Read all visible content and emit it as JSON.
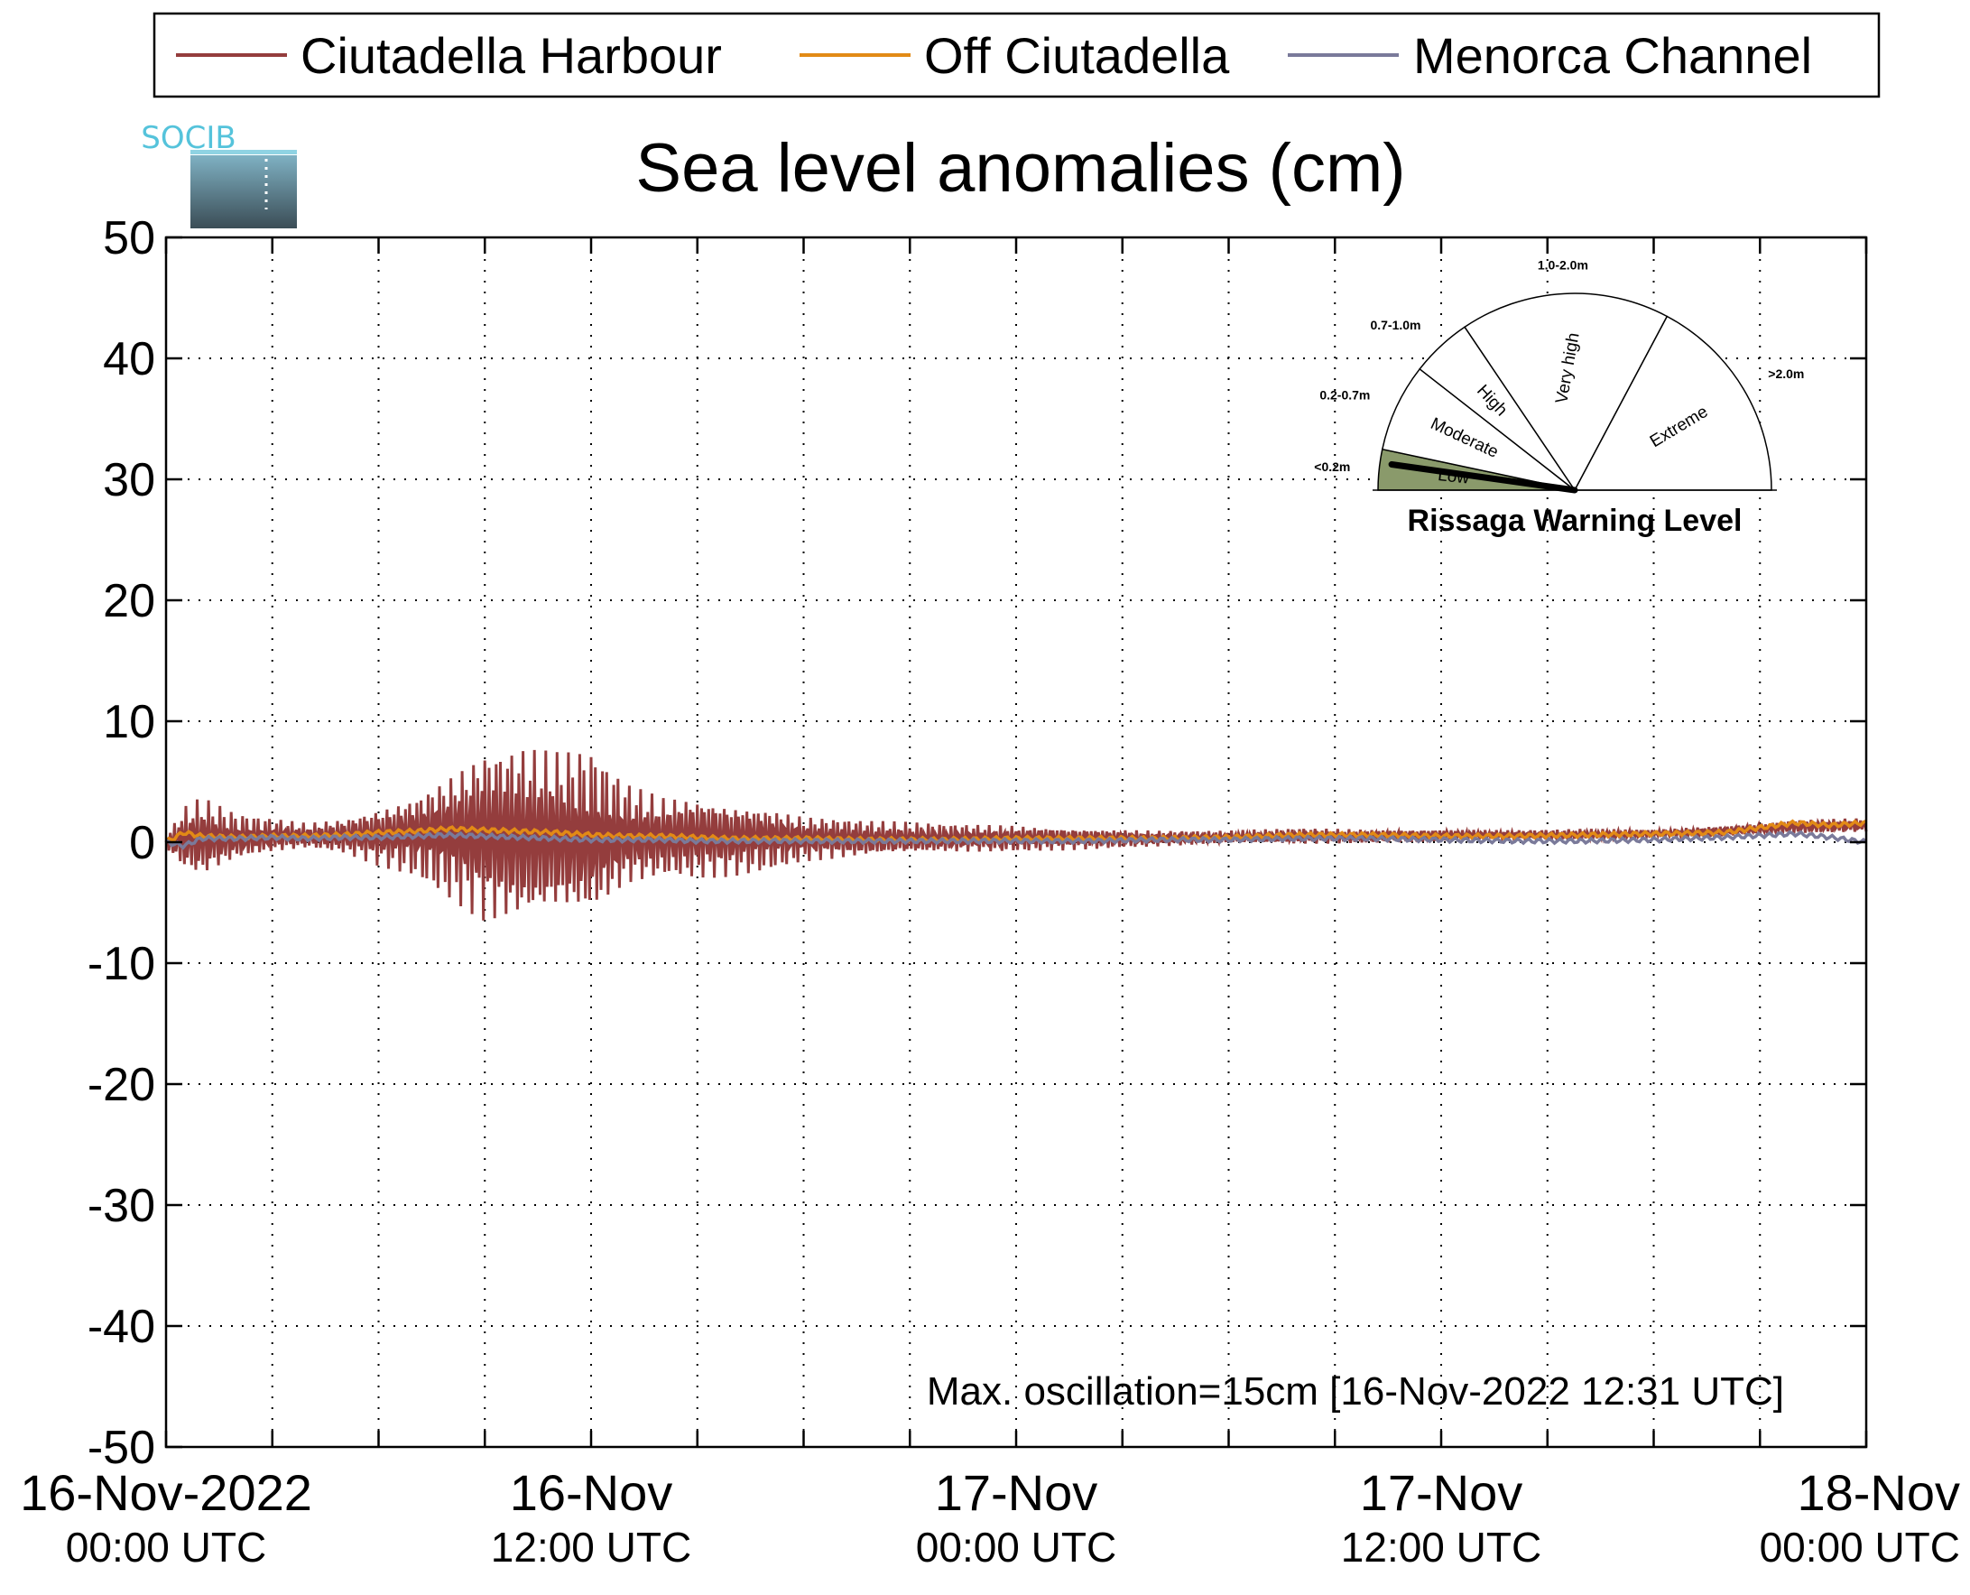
{
  "logo": {
    "text": "SOCIB",
    "color": "#55c3db"
  },
  "chart_data": {
    "type": "line",
    "title": "Sea level anomalies (cm)",
    "xlabel": "",
    "ylabel": "",
    "ylim": [
      -50,
      50
    ],
    "yticks": [
      50,
      40,
      30,
      20,
      10,
      0,
      -10,
      -20,
      -30,
      -40,
      -50
    ],
    "xlim_hours": [
      0,
      48
    ],
    "x_tick_labels": [
      {
        "hour": 0,
        "line1": "16-Nov-2022",
        "line2": "00:00 UTC"
      },
      {
        "hour": 12,
        "line1": "16-Nov",
        "line2": "12:00 UTC"
      },
      {
        "hour": 24,
        "line1": "17-Nov",
        "line2": "00:00 UTC"
      },
      {
        "hour": 36,
        "line1": "17-Nov",
        "line2": "12:00 UTC"
      },
      {
        "hour": 48,
        "line1": "18-Nov",
        "line2": "00:00 UTC"
      }
    ],
    "grid": true,
    "legend_position": "top",
    "series": [
      {
        "name": "Ciutadella Harbour",
        "color": "#943d3d",
        "envelope_time_hours": [
          0,
          0.5,
          1,
          2,
          3,
          4,
          5,
          6,
          7,
          8,
          8.5,
          9,
          9.5,
          10,
          11,
          12,
          13,
          14,
          15,
          16,
          17,
          18,
          20,
          22,
          24,
          26,
          28,
          30,
          32,
          34,
          36,
          38,
          40,
          42,
          44,
          46,
          48
        ],
        "envelope_max": [
          0.5,
          3,
          3.5,
          2,
          1.5,
          1.2,
          1.5,
          2.5,
          3.5,
          5.5,
          6.5,
          8,
          8,
          8,
          7.5,
          7,
          5,
          4,
          4,
          3.5,
          3,
          2,
          1.8,
          1.5,
          1.5,
          1.2,
          1,
          0.8,
          1.2,
          1.2,
          1.2,
          1,
          1.2,
          1,
          1.5,
          2,
          2
        ],
        "envelope_min": [
          -0.5,
          -2.5,
          -3.5,
          -2,
          -1.5,
          -1,
          -1.5,
          -2.5,
          -3.5,
          -5.5,
          -6.5,
          -7,
          -6.8,
          -7,
          -6.5,
          -7.5,
          -4,
          -3,
          -3,
          -2.8,
          -2.5,
          -2,
          -1.2,
          -1,
          -0.8,
          -0.6,
          -0.4,
          -0.3,
          -0.2,
          0,
          0.2,
          0.2,
          0.2,
          0.3,
          0.5,
          0.8,
          0.8
        ],
        "envelope_mean": [
          0,
          0.3,
          0.3,
          0.4,
          0.5,
          0.5,
          0.5,
          0.5,
          0.6,
          0.6,
          0.6,
          0.6,
          0.6,
          0.6,
          0.5,
          0.5,
          0.5,
          0.4,
          0.4,
          0.3,
          0.3,
          0.3,
          0.3,
          0.3,
          0.3,
          0.3,
          0.3,
          0.4,
          0.5,
          0.5,
          0.6,
          0.6,
          0.6,
          0.7,
          0.9,
          1.3,
          1.4
        ]
      },
      {
        "name": "Off Ciutadella",
        "color": "#e28a16",
        "time_hours": [
          0,
          0.5,
          1,
          2,
          3,
          4,
          5,
          6,
          7,
          8,
          9,
          10,
          11,
          12,
          13,
          14,
          15,
          16,
          17,
          18,
          20,
          22,
          24,
          26,
          28,
          30,
          32,
          34,
          36,
          38,
          40,
          42,
          44,
          46,
          47,
          48
        ],
        "values": [
          0,
          0.8,
          0.5,
          0.4,
          0.5,
          0.5,
          0.6,
          0.8,
          0.9,
          1.1,
          1,
          0.9,
          0.8,
          0.6,
          0.5,
          0.5,
          0.4,
          0.3,
          0.3,
          0.3,
          0.2,
          0.2,
          0.3,
          0.3,
          0.3,
          0.4,
          0.6,
          0.6,
          0.5,
          0.5,
          0.6,
          0.7,
          0.8,
          1.6,
          1.4,
          1.6
        ]
      },
      {
        "name": "Menorca Channel",
        "color": "#7a7a9a",
        "time_hours": [
          0,
          0.5,
          1,
          2,
          3,
          4,
          5,
          6,
          7,
          8,
          9,
          10,
          11,
          12,
          13,
          14,
          15,
          16,
          17,
          18,
          20,
          22,
          24,
          26,
          28,
          30,
          32,
          34,
          36,
          38,
          40,
          42,
          44,
          46,
          47,
          48
        ],
        "values": [
          0,
          -0.3,
          0.3,
          0.3,
          0.4,
          0.3,
          0.4,
          0.4,
          0.5,
          0.6,
          0.5,
          0.4,
          0.3,
          0.2,
          0.2,
          0.2,
          0.1,
          0.1,
          0.1,
          0.1,
          0.1,
          0.1,
          0.1,
          0.1,
          0.2,
          0.2,
          0.3,
          0.3,
          0.2,
          0.1,
          0.1,
          0.2,
          0.4,
          0.7,
          0.4,
          0.0
        ]
      }
    ],
    "annotation": {
      "text": "Max. oscillation=15cm [16-Nov-2022 12:31 UTC]",
      "color": "#943d3d"
    }
  },
  "gauge": {
    "title": "Rissaga Warning Level",
    "current_level": "Low",
    "levels": [
      {
        "name": "Low",
        "range": "<0.2m",
        "range_color": "#6b7c4f",
        "fill": "#8a9a6b"
      },
      {
        "name": "Moderate",
        "range": "0.2-0.7m",
        "range_color": "#5a7f8a",
        "fill": "#ffffff"
      },
      {
        "name": "High",
        "range": "0.7-1.0m",
        "range_color": "#e0d012",
        "fill": "#ffffff"
      },
      {
        "name": "Very high",
        "range": "1.0-2.0m",
        "range_color": "#f08a10",
        "fill": "#ffffff"
      },
      {
        "name": "Extreme",
        "range": ">2.0m",
        "range_color": "#e01010",
        "fill": "#ffffff"
      }
    ]
  }
}
